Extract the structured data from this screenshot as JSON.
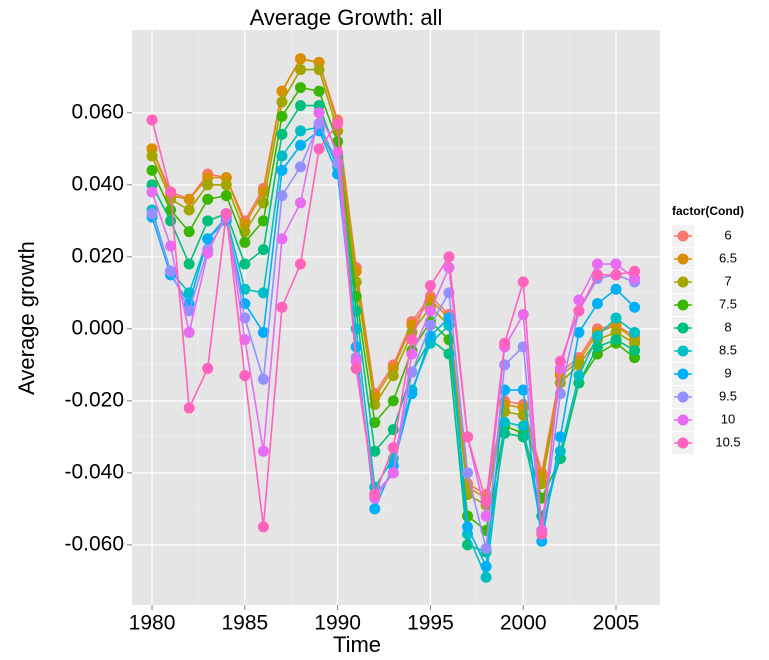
{
  "chart_data": {
    "type": "line",
    "title": "Average Growth: all",
    "x_label": "Time",
    "y_label": "Average growth",
    "legend_title": "factor(Cond)",
    "legend_position": "right",
    "grid": true,
    "x": [
      1980,
      1981,
      1982,
      1983,
      1984,
      1985,
      1986,
      1987,
      1988,
      1989,
      1990,
      1991,
      1992,
      1993,
      1994,
      1995,
      1996,
      1997,
      1998,
      1999,
      2000,
      2001,
      2002,
      2003,
      2004,
      2005,
      2006
    ],
    "xlim": [
      1978.92,
      2007.37
    ],
    "xticks": [
      1980,
      1985,
      1990,
      1995,
      2000,
      2005
    ],
    "ylim": [
      -0.0767,
      0.083
    ],
    "yticks": [
      {
        "value": -0.06,
        "label": "-0.060"
      },
      {
        "value": -0.04,
        "label": "-0.040"
      },
      {
        "value": -0.02,
        "label": "-0.020"
      },
      {
        "value": 0,
        "label": "0.000"
      },
      {
        "value": 0.02,
        "label": "0.020"
      },
      {
        "value": 0.04,
        "label": "0.040"
      },
      {
        "value": 0.06,
        "label": "0.060"
      }
    ],
    "series": [
      {
        "name": "6",
        "color": "#F8766D",
        "values": [
          0.05,
          0.038,
          0.036,
          0.043,
          0.042,
          0.03,
          0.039,
          0.066,
          0.075,
          0.074,
          0.058,
          0.017,
          -0.018,
          -0.01,
          0.002,
          0.009,
          0.004,
          -0.043,
          -0.046,
          -0.02,
          -0.021,
          -0.04,
          -0.012,
          -0.008,
          0.0,
          0.001,
          -0.002
        ]
      },
      {
        "name": "6.5",
        "color": "#D89000",
        "values": [
          0.05,
          0.037,
          0.036,
          0.042,
          0.042,
          0.029,
          0.038,
          0.066,
          0.075,
          0.074,
          0.057,
          0.016,
          -0.019,
          -0.011,
          0.001,
          0.008,
          0.003,
          -0.044,
          -0.047,
          -0.021,
          -0.022,
          -0.041,
          -0.013,
          -0.009,
          -0.001,
          0.001,
          -0.003
        ]
      },
      {
        "name": "7",
        "color": "#A3A500",
        "values": [
          0.048,
          0.036,
          0.033,
          0.04,
          0.04,
          0.027,
          0.035,
          0.063,
          0.072,
          0.072,
          0.055,
          0.013,
          -0.021,
          -0.013,
          -0.001,
          0.006,
          0.001,
          -0.046,
          -0.049,
          -0.023,
          -0.024,
          -0.043,
          -0.015,
          -0.01,
          -0.003,
          -0.001,
          -0.004
        ]
      },
      {
        "name": "7.5",
        "color": "#39B600",
        "values": [
          0.044,
          0.033,
          0.027,
          0.036,
          0.037,
          0.024,
          0.03,
          0.059,
          0.067,
          0.066,
          0.052,
          0.009,
          -0.026,
          -0.02,
          -0.006,
          0.002,
          -0.003,
          -0.052,
          -0.056,
          -0.027,
          -0.029,
          -0.047,
          -0.036,
          -0.015,
          -0.007,
          -0.004,
          -0.008
        ]
      },
      {
        "name": "8",
        "color": "#00BF7D",
        "values": [
          0.04,
          0.03,
          0.018,
          0.03,
          0.032,
          0.018,
          0.022,
          0.054,
          0.062,
          0.062,
          0.048,
          0.005,
          -0.034,
          -0.028,
          -0.012,
          -0.003,
          -0.007,
          -0.06,
          -0.062,
          -0.029,
          -0.03,
          -0.052,
          -0.036,
          -0.015,
          -0.005,
          -0.003,
          -0.006
        ]
      },
      {
        "name": "8.5",
        "color": "#00BFC4",
        "values": [
          0.033,
          0.016,
          0.01,
          0.025,
          0.031,
          0.011,
          0.01,
          0.048,
          0.055,
          0.056,
          0.045,
          0.0,
          -0.044,
          -0.036,
          -0.017,
          -0.004,
          0.001,
          -0.057,
          -0.069,
          -0.026,
          -0.027,
          -0.056,
          -0.034,
          -0.013,
          -0.002,
          0.003,
          -0.001
        ]
      },
      {
        "name": "9",
        "color": "#00B0F6",
        "values": [
          0.031,
          0.015,
          0.007,
          0.025,
          0.03,
          0.007,
          -0.001,
          0.044,
          0.051,
          0.055,
          0.043,
          -0.005,
          -0.05,
          -0.038,
          -0.018,
          -0.002,
          0.003,
          -0.055,
          -0.066,
          -0.017,
          -0.017,
          -0.059,
          -0.03,
          -0.001,
          0.007,
          0.011,
          0.006
        ]
      },
      {
        "name": "9.5",
        "color": "#9590FF",
        "values": [
          0.032,
          0.016,
          0.005,
          0.022,
          0.031,
          0.003,
          -0.014,
          0.037,
          0.045,
          0.057,
          0.046,
          -0.008,
          -0.046,
          -0.04,
          -0.012,
          0.001,
          0.01,
          -0.04,
          -0.061,
          -0.01,
          -0.005,
          -0.057,
          -0.018,
          0.005,
          0.014,
          0.015,
          0.013
        ]
      },
      {
        "name": "10",
        "color": "#E76BF3",
        "values": [
          0.038,
          0.023,
          -0.001,
          0.021,
          0.032,
          -0.003,
          -0.034,
          0.025,
          0.035,
          0.06,
          0.049,
          -0.009,
          -0.047,
          -0.04,
          -0.007,
          0.005,
          0.017,
          -0.03,
          -0.052,
          -0.005,
          0.004,
          -0.056,
          -0.011,
          0.008,
          0.018,
          0.018,
          0.014
        ]
      },
      {
        "name": "10.5",
        "color": "#FF62BC",
        "values": [
          0.058,
          0.038,
          -0.022,
          -0.011,
          0.032,
          -0.013,
          -0.055,
          0.006,
          0.018,
          0.05,
          0.057,
          -0.011,
          -0.046,
          -0.033,
          -0.003,
          0.012,
          0.02,
          -0.03,
          -0.048,
          -0.004,
          0.013,
          -0.057,
          -0.009,
          0.005,
          0.015,
          0.015,
          0.016
        ]
      }
    ]
  }
}
